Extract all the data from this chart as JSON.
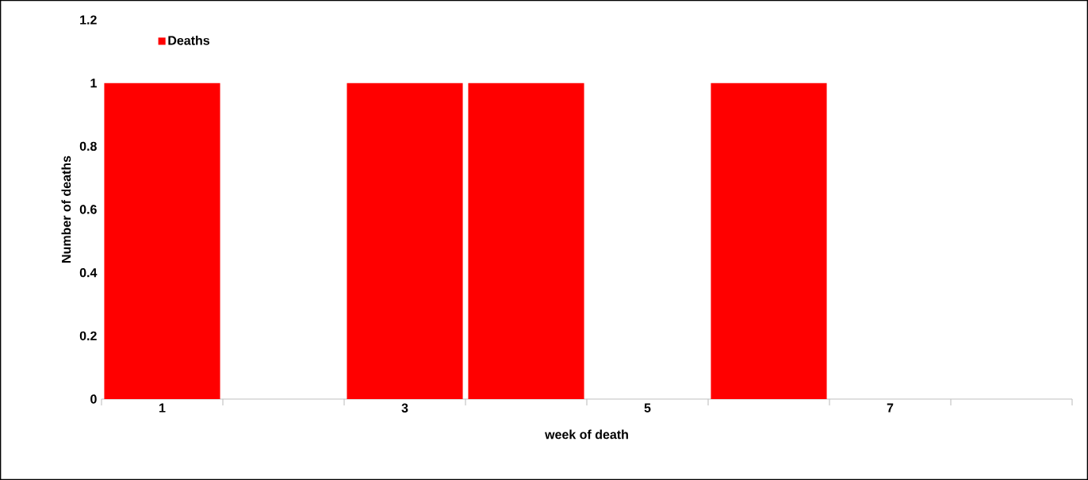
{
  "chart_data": {
    "type": "bar",
    "xlabel": "week of death",
    "ylabel": "Number of deaths",
    "categories": [
      "1",
      null,
      "3",
      null,
      "5",
      null,
      "7",
      null
    ],
    "series": [
      {
        "name": "Deaths",
        "color": "#ff0000",
        "values": [
          1,
          0,
          1,
          1,
          0,
          1,
          0,
          0
        ]
      }
    ],
    "ylim": [
      0,
      1.2
    ],
    "yticks": [
      0,
      0.2,
      0.4,
      0.6,
      0.8,
      1,
      1.2
    ],
    "legend": "top left"
  }
}
